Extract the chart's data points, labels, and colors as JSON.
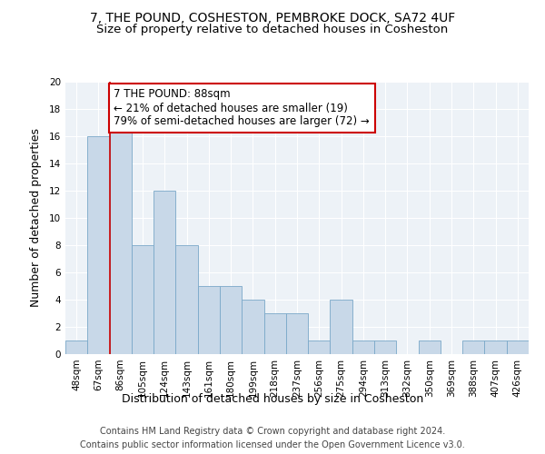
{
  "title": "7, THE POUND, COSHESTON, PEMBROKE DOCK, SA72 4UF",
  "subtitle": "Size of property relative to detached houses in Cosheston",
  "xlabel": "Distribution of detached houses by size in Cosheston",
  "ylabel": "Number of detached properties",
  "categories": [
    "48sqm",
    "67sqm",
    "86sqm",
    "105sqm",
    "124sqm",
    "143sqm",
    "161sqm",
    "180sqm",
    "199sqm",
    "218sqm",
    "237sqm",
    "256sqm",
    "275sqm",
    "294sqm",
    "313sqm",
    "332sqm",
    "350sqm",
    "369sqm",
    "388sqm",
    "407sqm",
    "426sqm"
  ],
  "values": [
    1,
    16,
    17,
    8,
    12,
    8,
    5,
    5,
    4,
    3,
    3,
    1,
    4,
    1,
    1,
    0,
    1,
    0,
    1,
    1,
    1
  ],
  "bar_color": "#c8d8e8",
  "bar_edge_color": "#7aa8c8",
  "vline_x": 1.5,
  "annotation_text": "7 THE POUND: 88sqm\n← 21% of detached houses are smaller (19)\n79% of semi-detached houses are larger (72) →",
  "annotation_box_color": "#ffffff",
  "annotation_box_edge_color": "#cc0000",
  "vline_color": "#cc0000",
  "ylim": [
    0,
    20
  ],
  "yticks": [
    0,
    2,
    4,
    6,
    8,
    10,
    12,
    14,
    16,
    18,
    20
  ],
  "background_color": "#edf2f7",
  "footer_line1": "Contains HM Land Registry data © Crown copyright and database right 2024.",
  "footer_line2": "Contains public sector information licensed under the Open Government Licence v3.0.",
  "title_fontsize": 10,
  "subtitle_fontsize": 9.5,
  "xlabel_fontsize": 9,
  "ylabel_fontsize": 9,
  "tick_fontsize": 7.5,
  "annotation_fontsize": 8.5,
  "footer_fontsize": 7
}
